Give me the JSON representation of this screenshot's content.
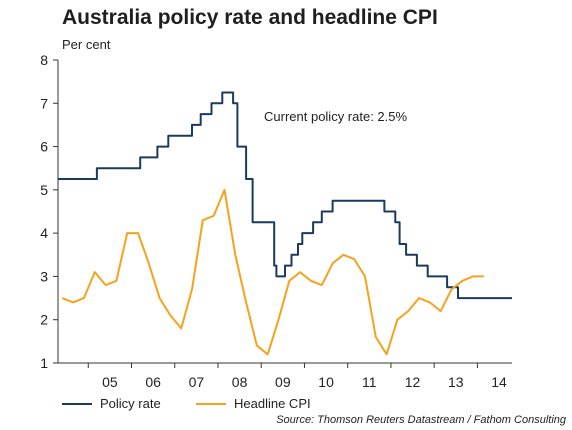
{
  "title": "Australia policy rate and headline CPI",
  "unit_label": "Per cent",
  "source": "Source: Thomson Reuters Datastream / Fathom Consulting",
  "colors": {
    "policy": "#1b3a5c",
    "cpi": "#f7a21b",
    "axis": "#333333"
  },
  "chart_data": {
    "type": "line",
    "title": "Australia policy rate and headline CPI",
    "ylabel": "Per cent",
    "xlabel": "",
    "xlim": [
      2004.3,
      2014.8
    ],
    "ylim": [
      1,
      8
    ],
    "x_ticks": [
      "05",
      "06",
      "07",
      "08",
      "09",
      "10",
      "11",
      "12",
      "13",
      "14"
    ],
    "y_ticks": [
      "1",
      "2",
      "3",
      "4",
      "5",
      "6",
      "7",
      "8"
    ],
    "grid": false,
    "legend_position": "bottom-left",
    "annotations": [
      "Current policy rate: 2.5%"
    ],
    "series": [
      {
        "name": "Policy rate",
        "step": true,
        "x": [
          2004.3,
          2004.6,
          2005.2,
          2005.6,
          2005.9,
          2006.2,
          2006.6,
          2006.85,
          2007.1,
          2007.4,
          2007.6,
          2007.85,
          2008.1,
          2008.25,
          2008.35,
          2008.45,
          2008.65,
          2008.8,
          2009.3,
          2009.35,
          2009.45,
          2009.55,
          2009.7,
          2009.85,
          2009.95,
          2010.2,
          2010.4,
          2010.65,
          2011.1,
          2011.5,
          2011.85,
          2012.1,
          2012.2,
          2012.35,
          2012.6,
          2012.85,
          2013.1,
          2013.3,
          2013.55,
          2013.85,
          2014.8
        ],
        "y": [
          5.25,
          5.25,
          5.5,
          5.5,
          5.5,
          5.75,
          6.0,
          6.25,
          6.25,
          6.5,
          6.75,
          7.0,
          7.25,
          7.25,
          7.0,
          6.0,
          5.25,
          4.25,
          3.25,
          3.0,
          3.0,
          3.25,
          3.5,
          3.75,
          4.0,
          4.25,
          4.5,
          4.75,
          4.75,
          4.75,
          4.5,
          4.25,
          3.75,
          3.5,
          3.25,
          3.0,
          3.0,
          2.75,
          2.5,
          2.5,
          2.5
        ]
      },
      {
        "name": "Headline CPI",
        "step": false,
        "x": [
          2004.4,
          2004.65,
          2004.9,
          2005.15,
          2005.4,
          2005.65,
          2005.9,
          2006.15,
          2006.4,
          2006.65,
          2006.9,
          2007.15,
          2007.4,
          2007.65,
          2007.9,
          2008.15,
          2008.4,
          2008.65,
          2008.9,
          2009.15,
          2009.4,
          2009.65,
          2009.9,
          2010.15,
          2010.4,
          2010.65,
          2010.9,
          2011.15,
          2011.4,
          2011.65,
          2011.9,
          2012.15,
          2012.4,
          2012.65,
          2012.9,
          2013.15,
          2013.4,
          2013.65,
          2013.9,
          2014.15
        ],
        "y": [
          2.5,
          2.4,
          2.5,
          3.1,
          2.8,
          2.9,
          4.0,
          4.0,
          3.3,
          2.5,
          2.1,
          1.8,
          2.7,
          4.3,
          4.4,
          5.0,
          3.5,
          2.4,
          1.4,
          1.2,
          2.0,
          2.9,
          3.1,
          2.9,
          2.8,
          3.3,
          3.5,
          3.4,
          3.0,
          1.6,
          1.2,
          2.0,
          2.2,
          2.5,
          2.4,
          2.2,
          2.7,
          2.9,
          3.0,
          3.0
        ]
      }
    ]
  }
}
